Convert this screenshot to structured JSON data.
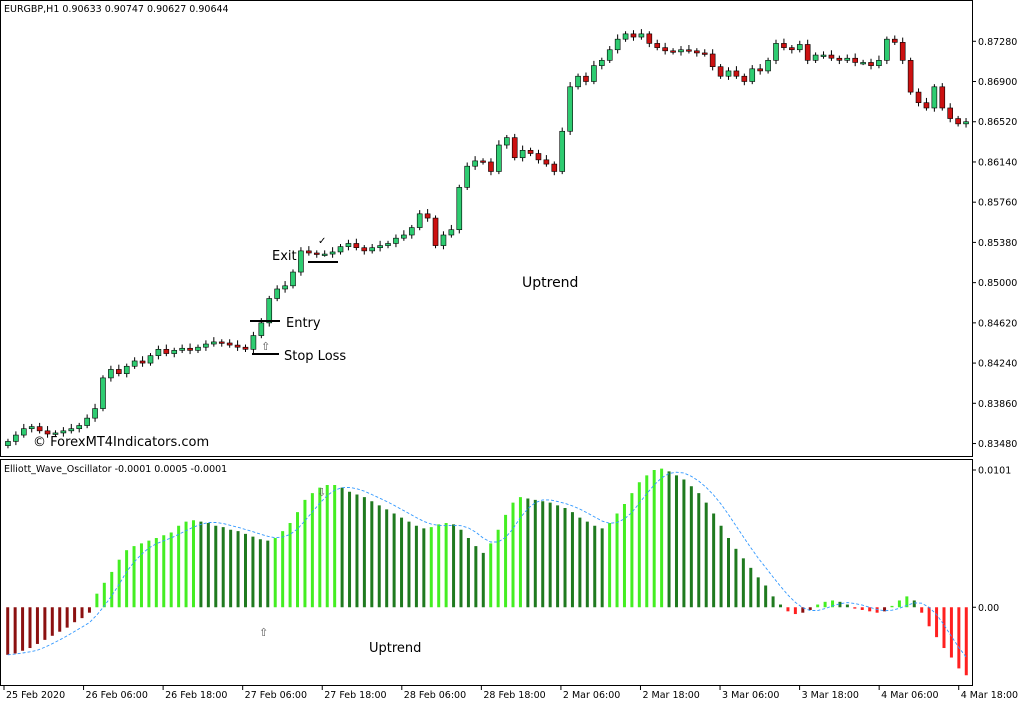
{
  "price_panel": {
    "header": "EURGBP,H1  0.90633 0.90747 0.90627 0.90644",
    "price_ticks": [
      "0.87280",
      "0.86900",
      "0.86520",
      "0.86140",
      "0.85760",
      "0.85380",
      "0.85000",
      "0.84620",
      "0.84240",
      "0.83860",
      "0.83480"
    ],
    "annotations": {
      "exit": "Exit",
      "entry": "Entry",
      "stop_loss": "Stop Loss",
      "trend": "Uptrend",
      "watermark": "© ForexMT4Indicators.com"
    }
  },
  "oscillator_panel": {
    "header": "Elliott_Wave_Oscillator -0.0001 0.0005 -0.0001",
    "ticks": [
      "0.0101",
      "0.00"
    ],
    "trend_label": "Uptrend"
  },
  "time_axis": {
    "labels": [
      "25 Feb 2020",
      "26 Feb 06:00",
      "26 Feb 18:00",
      "27 Feb 06:00",
      "27 Feb 18:00",
      "28 Feb 06:00",
      "28 Feb 18:00",
      "2 Mar 06:00",
      "2 Mar 18:00",
      "3 Mar 06:00",
      "3 Mar 18:00",
      "4 Mar 06:00",
      "4 Mar 18:00"
    ]
  },
  "colors": {
    "bull_candle": "#2ecc71",
    "bear_candle": "#cc1111",
    "osc_bright_green": "#44ee22",
    "osc_dark_green": "#1f7a1f",
    "osc_bright_red": "#ff2020",
    "osc_dark_red": "#8b1010",
    "signal_line": "#3399ff"
  },
  "chart_data": [
    {
      "type": "candlestick",
      "title": "EURGBP,H1",
      "ylim": [
        0.834,
        0.875
      ],
      "close": [
        0.835,
        0.8356,
        0.8362,
        0.8364,
        0.836,
        0.8357,
        0.8358,
        0.836,
        0.8362,
        0.8365,
        0.8372,
        0.8381,
        0.841,
        0.8418,
        0.8414,
        0.8421,
        0.8426,
        0.8424,
        0.8431,
        0.8437,
        0.8433,
        0.8436,
        0.8438,
        0.8436,
        0.8439,
        0.8442,
        0.8444,
        0.8443,
        0.8441,
        0.8439,
        0.8437,
        0.845,
        0.8462,
        0.8485,
        0.8494,
        0.8497,
        0.851,
        0.853,
        0.8528,
        0.8527,
        0.8527,
        0.8529,
        0.8534,
        0.8537,
        0.8533,
        0.853,
        0.8533,
        0.8535,
        0.8537,
        0.8542,
        0.8545,
        0.8552,
        0.8565,
        0.8561,
        0.8535,
        0.8545,
        0.855,
        0.859,
        0.861,
        0.8615,
        0.8614,
        0.8605,
        0.863,
        0.8637,
        0.8618,
        0.8625,
        0.8622,
        0.8616,
        0.8612,
        0.8605,
        0.8643,
        0.8685,
        0.8695,
        0.869,
        0.8705,
        0.871,
        0.872,
        0.873,
        0.8735,
        0.8732,
        0.8735,
        0.8726,
        0.8722,
        0.8719,
        0.8718,
        0.872,
        0.8719,
        0.8717,
        0.8716,
        0.8704,
        0.8695,
        0.87,
        0.8695,
        0.869,
        0.8702,
        0.87,
        0.871,
        0.8726,
        0.8722,
        0.872,
        0.8725,
        0.871,
        0.8715,
        0.8715,
        0.8712,
        0.871,
        0.8712,
        0.8708,
        0.8708,
        0.8705,
        0.871,
        0.873,
        0.8727,
        0.871,
        0.868,
        0.867,
        0.8665,
        0.8685,
        0.8665,
        0.8655,
        0.865,
        0.8652
      ]
    },
    {
      "type": "bar",
      "title": "Elliott_Wave_Oscillator",
      "ylim": [
        -0.0055,
        0.0101
      ],
      "values": [
        -0.0035,
        -0.0034,
        -0.0032,
        -0.003,
        -0.0027,
        -0.0024,
        -0.0021,
        -0.0018,
        -0.0015,
        -0.0011,
        -0.0008,
        -0.0004,
        0.001,
        0.0018,
        0.0026,
        0.0035,
        0.0042,
        0.0045,
        0.0047,
        0.0049,
        0.0051,
        0.0053,
        0.0055,
        0.006,
        0.0063,
        0.0064,
        0.0063,
        0.0062,
        0.006,
        0.0059,
        0.0057,
        0.0056,
        0.0054,
        0.0052,
        0.005,
        0.0049,
        0.0051,
        0.0056,
        0.0062,
        0.007,
        0.0079,
        0.0084,
        0.0088,
        0.009,
        0.009,
        0.0088,
        0.0085,
        0.0083,
        0.0081,
        0.0078,
        0.0075,
        0.0072,
        0.0069,
        0.0066,
        0.0063,
        0.006,
        0.0058,
        0.0059,
        0.0061,
        0.0062,
        0.0061,
        0.0057,
        0.0051,
        0.0045,
        0.004,
        0.0047,
        0.0057,
        0.0068,
        0.0077,
        0.0081,
        0.008,
        0.0079,
        0.0078,
        0.0077,
        0.0075,
        0.0073,
        0.007,
        0.0066,
        0.0063,
        0.006,
        0.0058,
        0.0062,
        0.0069,
        0.0076,
        0.0084,
        0.0092,
        0.0097,
        0.0101,
        0.0102,
        0.01,
        0.0097,
        0.0094,
        0.0089,
        0.0084,
        0.0077,
        0.0069,
        0.006,
        0.0051,
        0.0043,
        0.0036,
        0.0029,
        0.0022,
        0.0016,
        0.0008,
        0.0002,
        -0.0003,
        -0.0005,
        -0.0004,
        -0.0002,
        0.0002,
        0.0004,
        0.0005,
        0.0004,
        0.0002,
        -0.0001,
        -0.0002,
        -0.0003,
        -0.0004,
        -0.0003,
        0.0001,
        0.0005,
        0.0008,
        0.0005,
        -0.0004,
        -0.0014,
        -0.0022,
        -0.003,
        -0.0037,
        -0.0045,
        -0.005
      ]
    }
  ]
}
